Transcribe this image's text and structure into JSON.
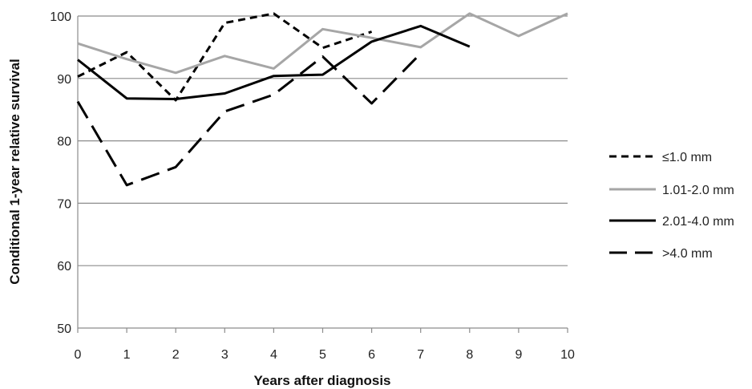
{
  "chart_data": {
    "type": "line",
    "xlabel": "Years after diagnosis",
    "ylabel": "Conditional 1-year relative survival",
    "xlim": [
      0,
      10
    ],
    "ylim": [
      50,
      100
    ],
    "x_ticks": [
      "0",
      "1",
      "2",
      "3",
      "4",
      "5",
      "6",
      "7",
      "8",
      "9",
      "10"
    ],
    "y_ticks": [
      "50",
      "60",
      "70",
      "80",
      "90",
      "100"
    ],
    "grid": "horizontal",
    "legend": "right",
    "series": [
      {
        "name": "≤1.0 mm",
        "style": "short-dash",
        "color": "#000000",
        "x": [
          0,
          1,
          2,
          3,
          4,
          5,
          6
        ],
        "y": [
          90.3,
          94.2,
          86.5,
          98.9,
          100.4,
          94.9,
          97.5
        ]
      },
      {
        "name": "1.01-2.0 mm",
        "style": "solid",
        "color": "#a6a6a6",
        "x": [
          0,
          1,
          2,
          3,
          4,
          5,
          6,
          7,
          8,
          9,
          10
        ],
        "y": [
          95.6,
          93.1,
          90.9,
          93.6,
          91.6,
          97.9,
          96.5,
          95.0,
          100.4,
          96.8,
          100.4
        ]
      },
      {
        "name": "2.01-4.0 mm",
        "style": "solid",
        "color": "#000000",
        "x": [
          0,
          1,
          2,
          3,
          4,
          5,
          6,
          7,
          8
        ],
        "y": [
          93.0,
          86.8,
          86.7,
          87.6,
          90.4,
          90.6,
          95.9,
          98.4,
          95.1
        ]
      },
      {
        "name": ">4.0 mm",
        "style": "long-dash",
        "color": "#000000",
        "x": [
          0,
          1,
          2,
          3,
          4,
          5,
          6,
          7
        ],
        "y": [
          86.3,
          72.9,
          75.8,
          84.7,
          87.4,
          93.5,
          86.0,
          94.0
        ]
      }
    ]
  }
}
